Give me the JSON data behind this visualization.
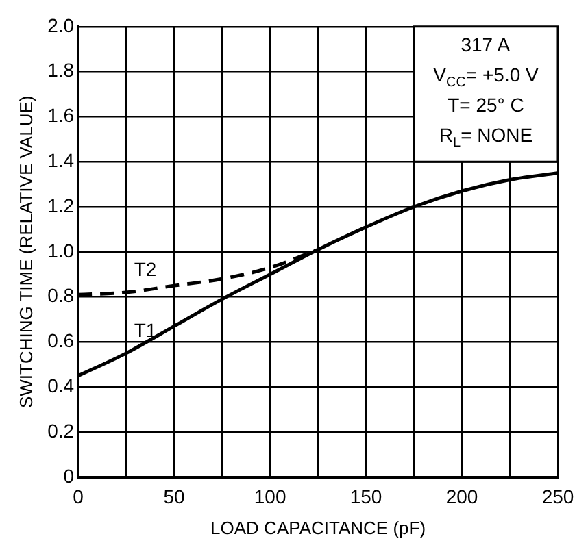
{
  "chart_data": {
    "type": "line",
    "xlabel": "LOAD CAPACITANCE (pF)",
    "ylabel": "SWITCHING TIME (RELATIVE VALUE)",
    "annotations": [
      "317 A",
      "V$_{CC}$= +5.0 V",
      "T= 25° C",
      "R$_{L}$= NONE"
    ],
    "xlim": [
      0,
      250
    ],
    "xticks": [
      0,
      {
        "value": 25,
        "label": null
      },
      50,
      {
        "value": 75,
        "label": null
      },
      100,
      {
        "value": 125,
        "label": null
      },
      150,
      {
        "value": 175,
        "label": null
      },
      200,
      {
        "value": 225,
        "label": null
      },
      250
    ],
    "ylim": [
      0,
      2.0
    ],
    "yticks": [
      {
        "value": 0,
        "label": "0"
      },
      0.2,
      0.4,
      0.6,
      0.8,
      {
        "value": 1,
        "label": "1.0"
      },
      1.2,
      1.4,
      1.6,
      1.8,
      {
        "value": 2,
        "label": "2.0"
      }
    ],
    "grid": true,
    "legend": false,
    "marker": "none",
    "series": [
      {
        "name": "T1",
        "color": "#000000",
        "line_style": "solid",
        "x": [
          0,
          25,
          50,
          75,
          100,
          125,
          150,
          175,
          200,
          225,
          250
        ],
        "values": [
          0.45,
          0.55,
          0.67,
          0.79,
          0.9,
          1.01,
          1.11,
          1.2,
          1.27,
          1.32,
          1.35
        ]
      },
      {
        "name": "T2",
        "color": "#000000",
        "line_style": "dashed",
        "x": [
          0,
          25,
          50,
          75,
          100,
          125
        ],
        "values": [
          0.81,
          0.82,
          0.85,
          0.88,
          0.93,
          1.01
        ]
      }
    ]
  }
}
